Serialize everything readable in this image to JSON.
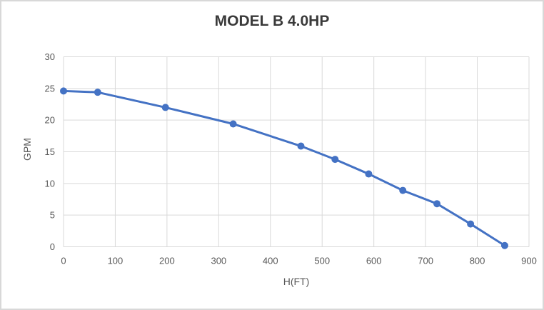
{
  "chart_data": {
    "type": "line",
    "title": "MODEL B 4.0HP",
    "xlabel": "H(FT)",
    "ylabel": "GPM",
    "x": [
      0,
      66,
      197,
      328,
      459,
      525,
      590,
      656,
      722,
      787,
      853
    ],
    "y": [
      24.6,
      24.4,
      22.0,
      19.4,
      15.9,
      13.8,
      11.5,
      8.9,
      6.8,
      3.6,
      0.2
    ],
    "xlim": [
      0,
      900
    ],
    "ylim": [
      0,
      30
    ],
    "x_ticks": [
      0,
      100,
      200,
      300,
      400,
      500,
      600,
      700,
      800,
      900
    ],
    "y_ticks": [
      0,
      5,
      10,
      15,
      20,
      25,
      30
    ],
    "grid": true,
    "legend_position": "none",
    "marker": "circle",
    "colors": {
      "line": "#4472C4",
      "marker": "#4472C4",
      "grid": "#D9D9D9",
      "tick_text": "#595959",
      "axis_title_text": "#595959",
      "title_text": "#3A3A3A",
      "frame_border": "#D8D8D8",
      "background": "#FFFFFF"
    }
  }
}
